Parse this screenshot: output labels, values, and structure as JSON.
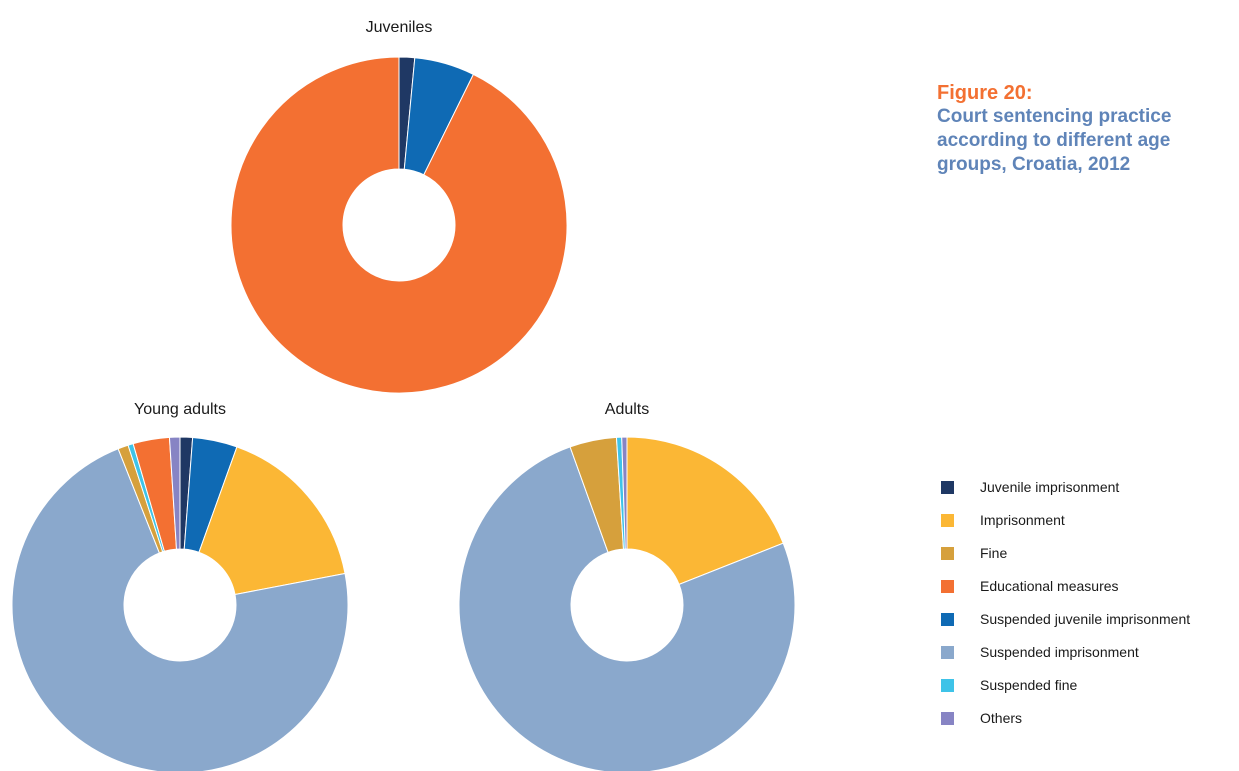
{
  "figure": {
    "number": "Figure 20:",
    "title": "Court sentencing practice according to different age groups, Croatia, 2012"
  },
  "legend": [
    {
      "label": "Juvenile imprisonment",
      "color": "#1f3864"
    },
    {
      "label": "Imprisonment",
      "color": "#fbb735"
    },
    {
      "label": "Fine",
      "color": "#d6a03c"
    },
    {
      "label": "Educational measures",
      "color": "#f37032"
    },
    {
      "label": "Suspended juvenile imprisonment",
      "color": "#0f6ab4"
    },
    {
      "label": "Suspended imprisonment",
      "color": "#8aa8cc"
    },
    {
      "label": "Suspended fine",
      "color": "#3ec3e8"
    },
    {
      "label": "Others",
      "color": "#8784c4"
    }
  ],
  "chart_data": [
    {
      "type": "pie",
      "title": "Juveniles",
      "slices": [
        {
          "label": "Juvenile imprisonment",
          "value": 1.5
        },
        {
          "label": "Suspended juvenile imprisonment",
          "value": 5.8
        },
        {
          "label": "Educational measures",
          "value": 92.7
        }
      ]
    },
    {
      "type": "pie",
      "title": "Young adults",
      "slices": [
        {
          "label": "Juvenile imprisonment",
          "value": 1.2
        },
        {
          "label": "Suspended juvenile imprisonment",
          "value": 4.3
        },
        {
          "label": "Imprisonment",
          "value": 16.5
        },
        {
          "label": "Suspended imprisonment",
          "value": 72.0
        },
        {
          "label": "Fine",
          "value": 1.0
        },
        {
          "label": "Suspended fine",
          "value": 0.5
        },
        {
          "label": "Educational measures",
          "value": 3.5
        },
        {
          "label": "Others",
          "value": 1.0
        }
      ]
    },
    {
      "type": "pie",
      "title": "Adults",
      "slices": [
        {
          "label": "Imprisonment",
          "value": 19.0
        },
        {
          "label": "Suspended imprisonment",
          "value": 75.5
        },
        {
          "label": "Fine",
          "value": 4.5
        },
        {
          "label": "Suspended fine",
          "value": 0.5
        },
        {
          "label": "Others",
          "value": 0.5
        }
      ]
    }
  ]
}
